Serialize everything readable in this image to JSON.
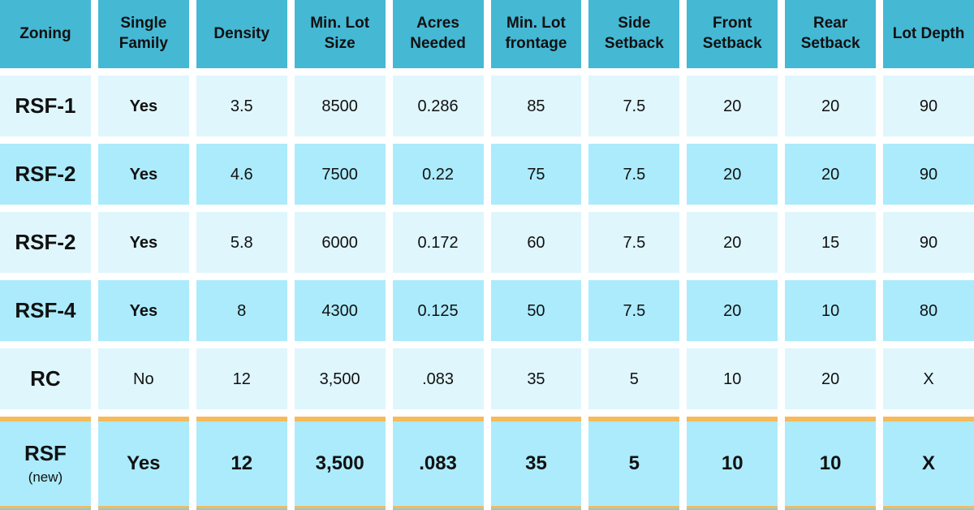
{
  "colors": {
    "header_bg": "#45B8D4",
    "row_light": "#DFF6FD",
    "row_medium": "#ACEBFC",
    "accent_orange": "#F6B95C",
    "accent_teal": "#7ED0E2",
    "text": "#111111"
  },
  "chart_data": {
    "type": "table",
    "columns": [
      "Zoning",
      "Single Family",
      "Density",
      "Min. Lot Size",
      "Acres Needed",
      "Min. Lot frontage",
      "Side Setback",
      "Front Setback",
      "Rear Setback",
      "Lot Depth"
    ],
    "rows": [
      {
        "label": "RSF-1",
        "sublabel": "",
        "highlight": false,
        "values": [
          "Yes",
          "3.5",
          "8500",
          "0.286",
          "85",
          "7.5",
          "20",
          "20",
          "90"
        ]
      },
      {
        "label": "RSF-2",
        "sublabel": "",
        "highlight": false,
        "values": [
          "Yes",
          "4.6",
          "7500",
          "0.22",
          "75",
          "7.5",
          "20",
          "20",
          "90"
        ]
      },
      {
        "label": "RSF-2",
        "sublabel": "",
        "highlight": false,
        "values": [
          "Yes",
          "5.8",
          "6000",
          "0.172",
          "60",
          "7.5",
          "20",
          "15",
          "90"
        ]
      },
      {
        "label": "RSF-4",
        "sublabel": "",
        "highlight": false,
        "values": [
          "Yes",
          "8",
          "4300",
          "0.125",
          "50",
          "7.5",
          "20",
          "10",
          "80"
        ]
      },
      {
        "label": "RC",
        "sublabel": "",
        "highlight": false,
        "values": [
          "No",
          "12",
          "3,500",
          ".083",
          "35",
          "5",
          "10",
          "20",
          "X"
        ]
      },
      {
        "label": "RSF",
        "sublabel": "(new)",
        "highlight": true,
        "values": [
          "Yes",
          "12",
          "3,500",
          ".083",
          "35",
          "5",
          "10",
          "10",
          "X"
        ]
      }
    ]
  }
}
